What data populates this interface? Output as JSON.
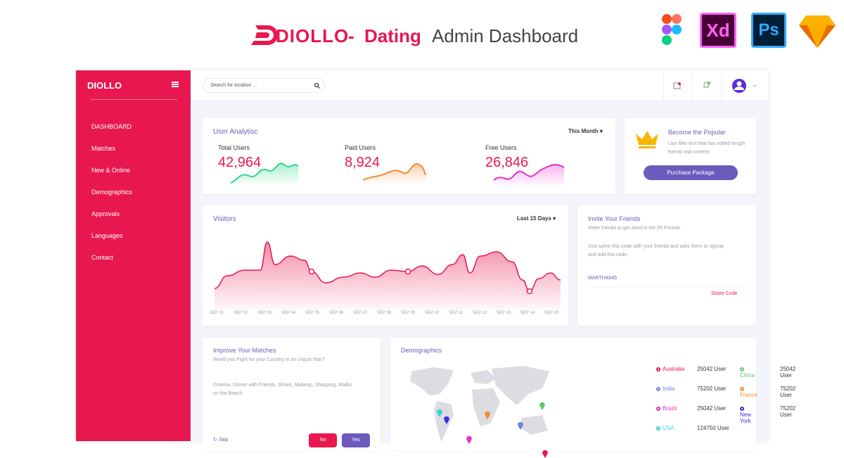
{
  "banner": {
    "brand": "DIOLLO",
    "separator": "-",
    "highlight": "Dating",
    "subtitle": "Admin Dashboard",
    "tools": [
      "Xd",
      "Ps"
    ]
  },
  "sidebar": {
    "brand": "DIOLLO",
    "menu": [
      "DASHBOARD",
      "Matches",
      "New & Online",
      "Demographics",
      "Approvals",
      "Languages",
      "Contact"
    ]
  },
  "topbar": {
    "search_placeholder": "Search for location ..."
  },
  "analytics": {
    "title": "User Analytisc",
    "period": "This Month",
    "stats": [
      {
        "label": "Total Users",
        "value": "42,964"
      },
      {
        "label": "Paid Users",
        "value": "8,924"
      },
      {
        "label": "Free Users",
        "value": "26,846"
      }
    ]
  },
  "popular": {
    "title": "Become the Popular",
    "text": "Use filler text that has edited length format real content.",
    "button": "Purchase Package"
  },
  "visitors": {
    "title": "Visitors",
    "period": "Last 15 Days",
    "dates": [
      "SEP 01",
      "SEP 02",
      "SEP 03",
      "SEP 04",
      "SEP 05",
      "SEP 06",
      "SEP 07",
      "SEP 08",
      "SEP 09",
      "SEP 10",
      "SEP 11",
      "SEP 12",
      "SEP 13",
      "SEP 14",
      "SEP 15"
    ]
  },
  "invite": {
    "title": "Invite Your Friends",
    "subtitle": "Refer friends to get ahed in the 05 Frineds",
    "text": "Just sahre this code with your friends and asks them to signup and add this code.",
    "code": "MARTHA045",
    "action": "Share Code"
  },
  "improve": {
    "title": "Improve Your Matches",
    "question": "World you Fight for your Country in an Unjust War?",
    "text": "Cinema, Dinner with Friends, Shoes, Makeup, Shopping, Walks on the Beach.",
    "skip": "Skip",
    "no": "No",
    "yes": "Yes"
  },
  "demographics": {
    "title": "Demographics",
    "countries": [
      {
        "name": "Australia",
        "users": "25042 User",
        "color": "#e8174f"
      },
      {
        "name": "China",
        "users": "25042 User",
        "color": "#5cc96b"
      },
      {
        "name": "India",
        "users": "75202 User",
        "color": "#6e7fe0"
      },
      {
        "name": "France",
        "users": "75202 User",
        "color": "#f58a2e"
      },
      {
        "name": "Brazil",
        "users": "25042 User",
        "color": "#e62fc9"
      },
      {
        "name": "New York",
        "users": "75202 User",
        "color": "#3d2be0"
      },
      {
        "name": "USA",
        "users": "124750 User",
        "color": "#3ccfd4"
      }
    ]
  }
}
